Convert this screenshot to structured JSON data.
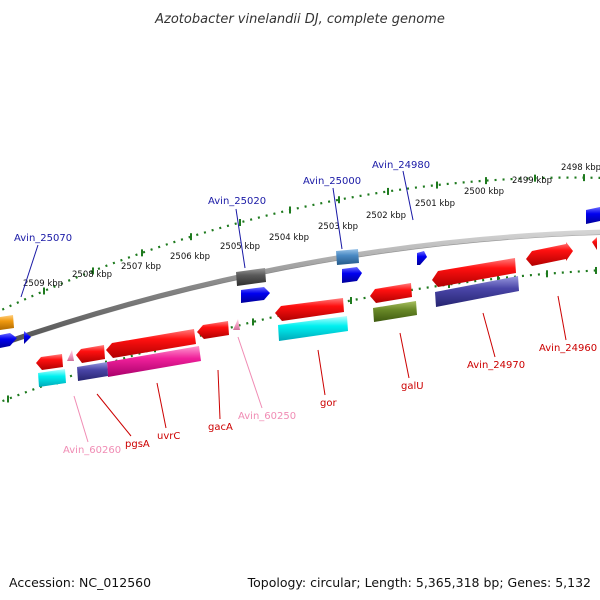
{
  "title": "Azotobacter vinelandii DJ, complete genome",
  "footer": {
    "accession": "Accession: NC_012560",
    "topology": "Topology: circular; Length: 5,365,318 bp; Genes: 5,132"
  },
  "ruler": {
    "labels": [
      "2498 kbp",
      "2499 kbp",
      "2500 kbp",
      "2501 kbp",
      "2502 kbp",
      "2503 kbp",
      "2504 kbp",
      "2505 kbp",
      "2506 kbp",
      "2507 kbp",
      "2508 kbp",
      "2509 kbp"
    ]
  },
  "gene_labels": [
    {
      "text": "Avin_25070",
      "color": "#1a1aa6"
    },
    {
      "text": "Avin_25020",
      "color": "#1a1aa6"
    },
    {
      "text": "Avin_25000",
      "color": "#1a1aa6"
    },
    {
      "text": "Avin_24980",
      "color": "#1a1aa6"
    },
    {
      "text": "Avin_24960",
      "color": "#cc0000"
    },
    {
      "text": "Avin_24970",
      "color": "#cc0000"
    },
    {
      "text": "galU",
      "color": "#cc0000"
    },
    {
      "text": "gor",
      "color": "#cc0000"
    },
    {
      "text": "Avin_60250",
      "color": "#f08cb4"
    },
    {
      "text": "gacA",
      "color": "#cc0000"
    },
    {
      "text": "uvrC",
      "color": "#cc0000"
    },
    {
      "text": "pgsA",
      "color": "#cc0000"
    },
    {
      "text": "Avin_60260",
      "color": "#f08cb4"
    }
  ],
  "colors": {
    "backbone": "#8c8c8c",
    "ruler": "#1e7a1e",
    "forward_cds": "#e00000",
    "reverse_cds": "#0000e0"
  }
}
